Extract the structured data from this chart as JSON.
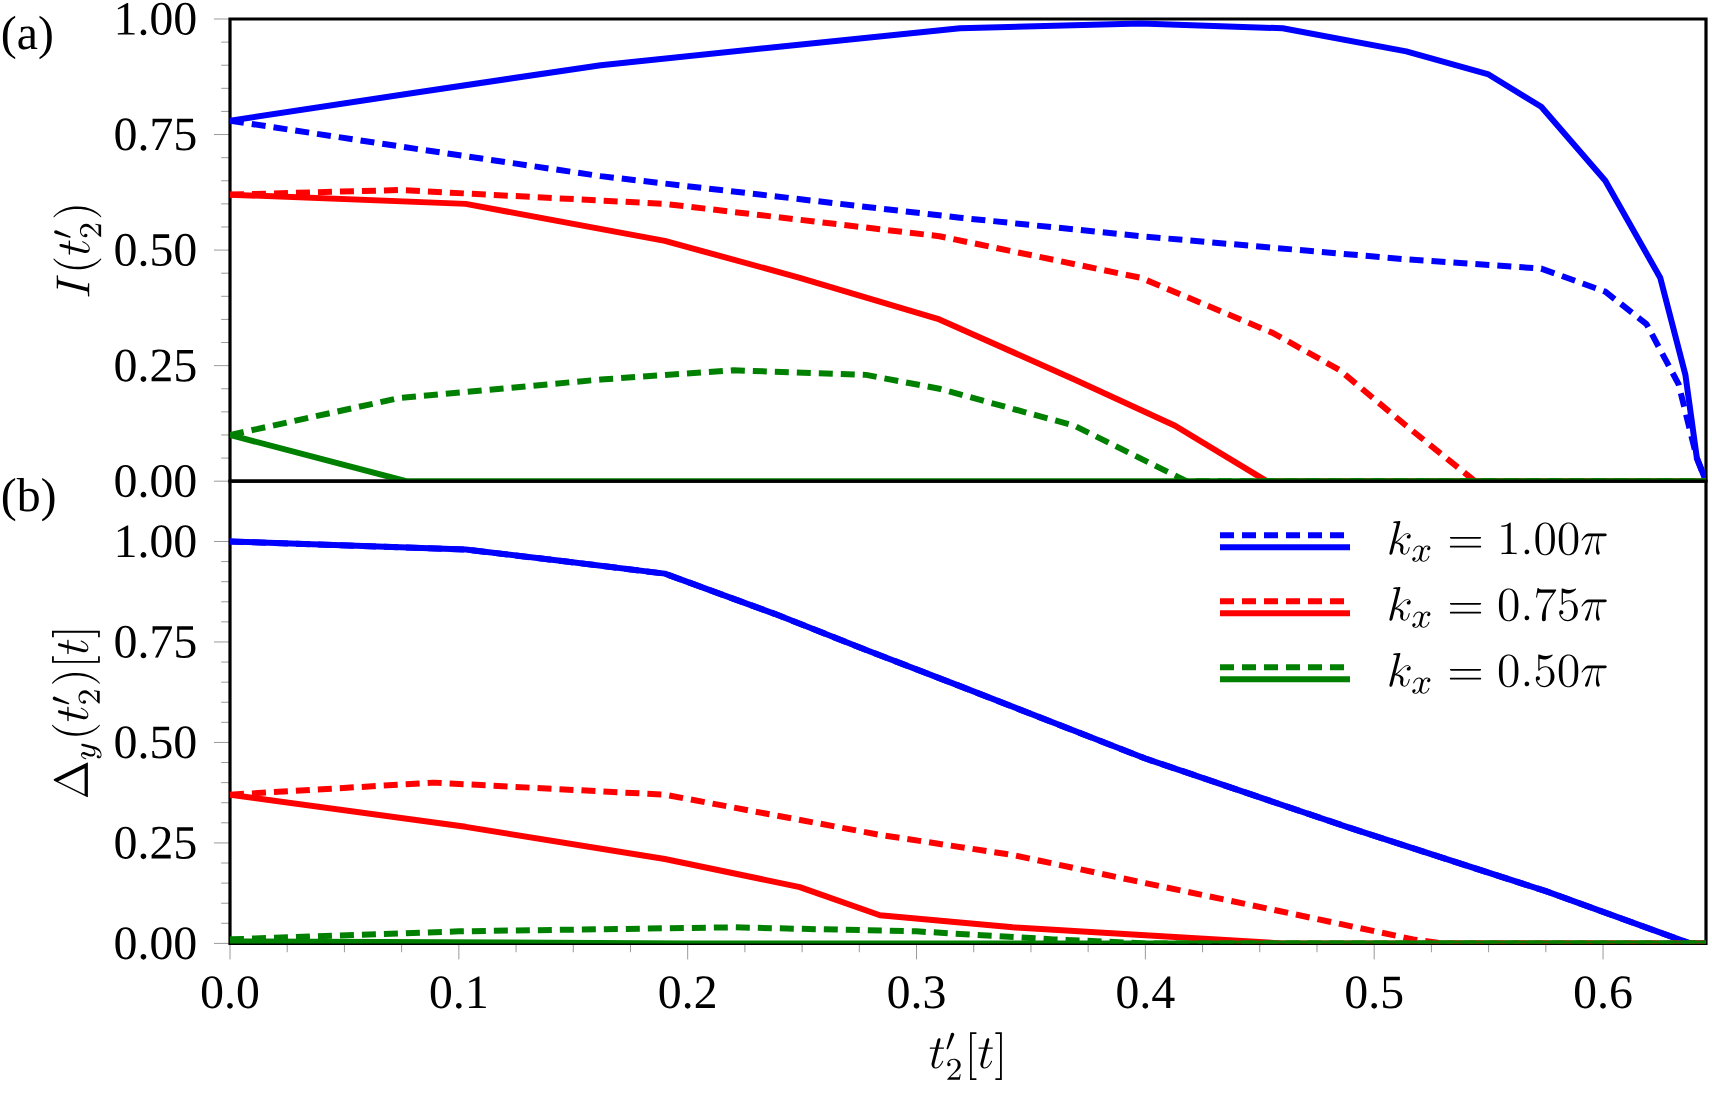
{
  "chart_data": [
    {
      "type": "line",
      "annotations": [
        "(a)"
      ],
      "ylabel": "I(t_2')",
      "xlim": [
        0,
        0.645
      ],
      "ylim": [
        0,
        1
      ],
      "xticks": [
        {
          "value": 0,
          "label": null
        },
        {
          "value": 0.1,
          "label": null
        },
        {
          "value": 0.2,
          "label": null
        },
        {
          "value": 0.3,
          "label": null
        },
        {
          "value": 0.4,
          "label": null
        },
        {
          "value": 0.5,
          "label": null
        },
        {
          "value": 0.6,
          "label": null
        }
      ],
      "yticks": [
        {
          "value": 0,
          "label": "0.00"
        },
        {
          "value": 0.25,
          "label": "0.25"
        },
        {
          "value": 0.5,
          "label": "0.50"
        },
        {
          "value": 0.75,
          "label": "0.75"
        },
        {
          "value": 1,
          "label": "1.00"
        }
      ],
      "tick_labels": "y",
      "series": [
        {
          "color": "#0000ff",
          "line_style": "dashed",
          "x": [
            0,
            0.08,
            0.162,
            0.319,
            0.398,
            0.514,
            0.573,
            0.601,
            0.619,
            0.633,
            0.641,
            0.645
          ],
          "values": [
            0.78,
            0.72,
            0.66,
            0.57,
            0.53,
            0.48,
            0.46,
            0.41,
            0.34,
            0.21,
            0.05,
            0
          ]
        },
        {
          "color": "#0000ff",
          "line_style": "solid",
          "x": [
            0,
            0.08,
            0.162,
            0.24,
            0.319,
            0.398,
            0.46,
            0.514,
            0.55,
            0.573,
            0.601,
            0.625,
            0.636,
            0.641,
            0.645
          ],
          "values": [
            0.78,
            0.84,
            0.9,
            0.94,
            0.98,
            0.99,
            0.98,
            0.93,
            0.88,
            0.81,
            0.65,
            0.44,
            0.23,
            0.05,
            0
          ]
        },
        {
          "color": "#ff0000",
          "line_style": "dashed",
          "x": [
            0,
            0.074,
            0.19,
            0.31,
            0.398,
            0.456,
            0.485,
            0.514,
            0.544,
            0.645
          ],
          "values": [
            0.62,
            0.63,
            0.6,
            0.53,
            0.44,
            0.32,
            0.24,
            0.12,
            0,
            0
          ]
        },
        {
          "color": "#ff0000",
          "line_style": "solid",
          "x": [
            0,
            0.103,
            0.19,
            0.249,
            0.31,
            0.369,
            0.413,
            0.453,
            0.645
          ],
          "values": [
            0.62,
            0.6,
            0.52,
            0.44,
            0.35,
            0.22,
            0.12,
            0,
            0
          ]
        },
        {
          "color": "#008000",
          "line_style": "dashed",
          "x": [
            0,
            0.074,
            0.162,
            0.22,
            0.278,
            0.31,
            0.369,
            0.418,
            0.645
          ],
          "values": [
            0.1,
            0.18,
            0.22,
            0.24,
            0.23,
            0.2,
            0.12,
            0,
            0
          ]
        },
        {
          "color": "#008000",
          "line_style": "solid",
          "x": [
            0,
            0.077,
            0.645
          ],
          "values": [
            0.1,
            0,
            0
          ]
        }
      ]
    },
    {
      "type": "line",
      "annotations": [
        "(b)"
      ],
      "xlabel": "t_2'[t]",
      "ylabel": "\\Delta_y(t_2')[t]",
      "xlim": [
        0,
        0.645
      ],
      "ylim": [
        0,
        1.15
      ],
      "xticks": [
        {
          "value": 0,
          "label": "0.0"
        },
        {
          "value": 0.1,
          "label": "0.1"
        },
        {
          "value": 0.2,
          "label": "0.2"
        },
        {
          "value": 0.3,
          "label": "0.3"
        },
        {
          "value": 0.4,
          "label": "0.4"
        },
        {
          "value": 0.5,
          "label": "0.5"
        },
        {
          "value": 0.6,
          "label": "0.6"
        }
      ],
      "yticks": [
        {
          "value": 0,
          "label": "0.00"
        },
        {
          "value": 0.25,
          "label": "0.25"
        },
        {
          "value": 0.5,
          "label": "0.50"
        },
        {
          "value": 0.75,
          "label": "0.75"
        },
        {
          "value": 1,
          "label": "1.00"
        }
      ],
      "legend": "top right",
      "series": [
        {
          "color": "#0000ff",
          "line_style": "dashed",
          "x": [
            0,
            0.103,
            0.147,
            0.19,
            0.238,
            0.278,
            0.319,
            0.4,
            0.488,
            0.575,
            0.638,
            0.645
          ],
          "values": [
            1.0,
            0.98,
            0.95,
            0.92,
            0.82,
            0.73,
            0.64,
            0.46,
            0.29,
            0.13,
            0,
            0
          ]
        },
        {
          "name": "k_x = 1.00\\pi",
          "color": "#0000ff",
          "line_style": "solid",
          "x": [
            0,
            0.103,
            0.147,
            0.19,
            0.238,
            0.278,
            0.319,
            0.4,
            0.488,
            0.575,
            0.638,
            0.645
          ],
          "values": [
            1.0,
            0.98,
            0.95,
            0.92,
            0.82,
            0.73,
            0.64,
            0.46,
            0.29,
            0.13,
            0,
            0
          ]
        },
        {
          "color": "#ff0000",
          "line_style": "dashed",
          "x": [
            0,
            0.089,
            0.19,
            0.284,
            0.342,
            0.4,
            0.459,
            0.517,
            0.53,
            0.645
          ],
          "values": [
            0.37,
            0.4,
            0.37,
            0.27,
            0.22,
            0.15,
            0.08,
            0.01,
            0,
            0
          ]
        },
        {
          "name": "k_x = 0.75\\pi",
          "color": "#ff0000",
          "line_style": "solid",
          "x": [
            0,
            0.103,
            0.19,
            0.249,
            0.284,
            0.342,
            0.4,
            0.46,
            0.645
          ],
          "values": [
            0.37,
            0.29,
            0.21,
            0.14,
            0.07,
            0.04,
            0.02,
            0,
            0
          ]
        },
        {
          "color": "#008000",
          "line_style": "dashed",
          "x": [
            0,
            0.1,
            0.22,
            0.3,
            0.36,
            0.4,
            0.645
          ],
          "values": [
            0.01,
            0.03,
            0.04,
            0.03,
            0.01,
            0,
            0
          ]
        },
        {
          "name": "k_x = 0.50\\pi",
          "color": "#008000",
          "line_style": "solid",
          "x": [
            0,
            0.2,
            0.645
          ],
          "values": [
            0.005,
            0,
            0
          ]
        }
      ]
    }
  ]
}
